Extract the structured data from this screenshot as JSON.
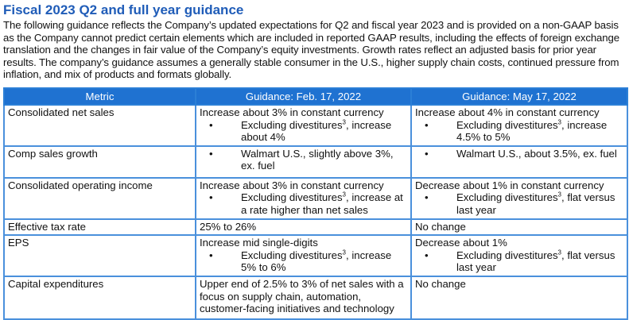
{
  "title": "Fiscal 2023 Q2 and full year guidance",
  "intro": "The following guidance reflects the Company’s updated expectations for Q2 and fiscal year 2023 and is provided on a non-GAAP basis as the Company cannot predict certain elements which are included in reported GAAP results, including the effects of foreign exchange translation and the changes in fair value of the Company’s equity investments. Growth rates reflect an adjusted basis for prior year results. The company’s guidance assumes a generally stable consumer in the U.S., higher supply chain costs, continued pressure from inflation, and mix of products and formats globally.",
  "table": {
    "headers": [
      "Metric",
      "Guidance: Feb. 17, 2022",
      "Guidance: May 17, 2022"
    ],
    "rows": [
      {
        "metric": "Consolidated net sales",
        "feb": {
          "text": "Increase about 3% in constant currency",
          "bullet_pre": "Excluding divestitures",
          "sup": "3",
          "bullet_post": ", increase about 4%"
        },
        "may": {
          "text": "Increase about 4% in constant currency",
          "bullet_pre": "Excluding divestitures",
          "sup": "3",
          "bullet_post": ", increase 4.5% to 5%"
        }
      },
      {
        "metric": "Comp sales growth",
        "feb": {
          "bullet": "Walmart U.S., slightly above 3%, ex. fuel"
        },
        "may": {
          "bullet": "Walmart U.S., about 3.5%, ex. fuel"
        }
      },
      {
        "metric": "Consolidated operating income",
        "feb": {
          "text": "Increase about 3% in constant currency",
          "bullet_pre": "Excluding divestitures",
          "sup": "3",
          "bullet_post": ", increase at a rate higher than net sales"
        },
        "may": {
          "text": "Decrease about 1%  in constant currency",
          "bullet_pre": "Excluding divestitures",
          "sup": "3",
          "bullet_post": ", flat versus last year"
        }
      },
      {
        "metric": "Effective tax rate",
        "feb": {
          "text": "25% to 26%"
        },
        "may": {
          "text": "No change"
        }
      },
      {
        "metric": "EPS",
        "feb": {
          "text": "Increase mid single-digits",
          "bullet_pre": "Excluding divestitures",
          "sup": "3",
          "bullet_post": ", increase 5% to 6%"
        },
        "may": {
          "text": "Decrease about 1%",
          "bullet_pre": "Excluding divestitures",
          "sup": "3",
          "bullet_post": ", flat versus last year"
        }
      },
      {
        "metric": "Capital expenditures",
        "feb": {
          "text": "Upper end of 2.5% to 3% of net sales with a focus on supply chain, automation, customer-facing initiatives and technology"
        },
        "may": {
          "text": "No change"
        }
      }
    ]
  }
}
